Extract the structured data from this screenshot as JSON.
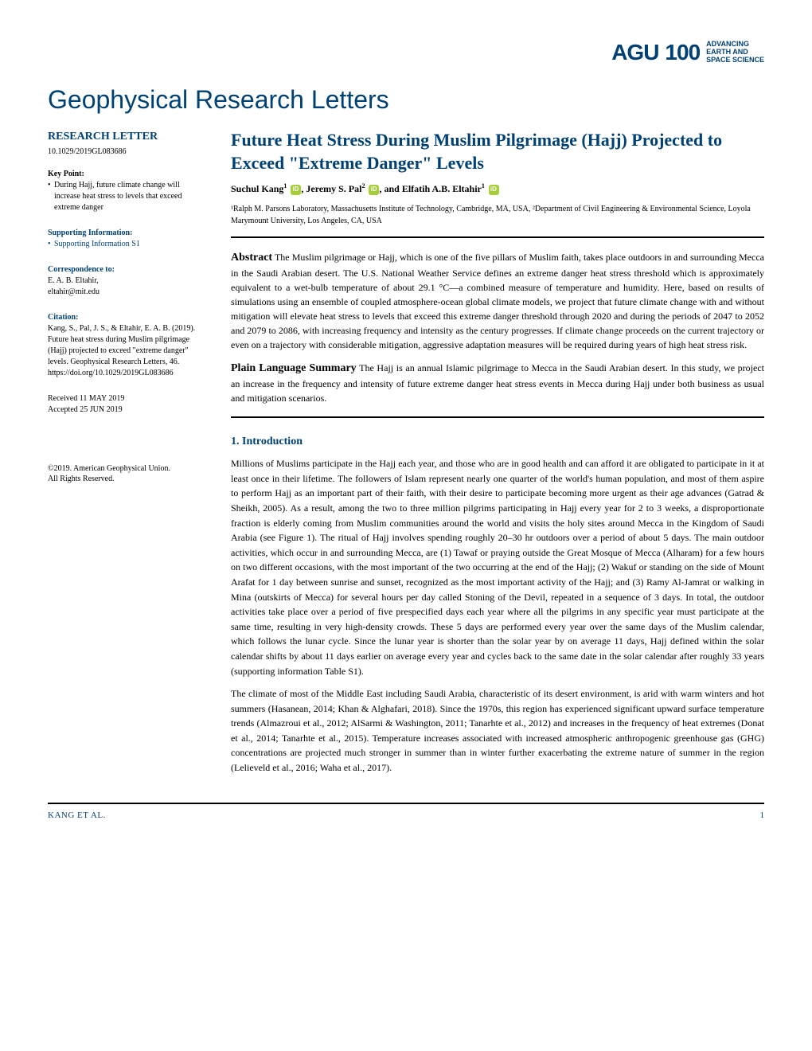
{
  "colors": {
    "primary_blue": "#004174",
    "text_black": "#000000",
    "orcid_green": "#a6ce39",
    "brand_red": "#c4302b"
  },
  "header": {
    "agu_text": "AGU",
    "agu_100": "100",
    "tagline_1": "ADVANCING",
    "tagline_2": "EARTH AND",
    "tagline_3": "SPACE SCIENCE"
  },
  "journal_title": "Geophysical Research Letters",
  "sidebar": {
    "type_label": "RESEARCH LETTER",
    "doi": "10.1029/2019GL083686",
    "key_point_label": "Key Point:",
    "key_point": "During Hajj, future climate change will increase heat stress to levels that exceed extreme danger",
    "supporting_label": "Supporting Information:",
    "supporting_item": "Supporting Information S1",
    "correspondence_label": "Correspondence to:",
    "correspondence_name": "E. A. B. Eltahir,",
    "correspondence_email": "eltahir@mit.edu",
    "citation_label": "Citation:",
    "citation_text": "Kang, S., Pal, J. S., & Eltahir, E. A. B. (2019). Future heat stress during Muslim pilgrimage (Hajj) projected to exceed \"extreme danger\" levels. Geophysical Research Letters, 46. https://doi.org/10.1029/2019GL083686",
    "received": "Received 11 MAY 2019",
    "accepted": "Accepted 25 JUN 2019",
    "copyright_line1": "©2019. American Geophysical Union.",
    "copyright_line2": "All Rights Reserved."
  },
  "article": {
    "title": "Future Heat Stress During Muslim Pilgrimage (Hajj) Projected to Exceed \"Extreme Danger\" Levels",
    "author1": "Suchul Kang",
    "author1_sup": "1",
    "author2": "Jeremy S. Pal",
    "author2_sup": "2",
    "author3": "Elfatih A.B. Eltahir",
    "author3_sup": "1",
    "affiliations": "¹Ralph M. Parsons Laboratory, Massachusetts Institute of Technology, Cambridge, MA, USA, ²Department of Civil Engineering & Environmental Science, Loyola Marymount University, Los Angeles, CA, USA",
    "abstract_label": "Abstract",
    "abstract": "The Muslim pilgrimage or Hajj, which is one of the five pillars of Muslim faith, takes place outdoors in and surrounding Mecca in the Saudi Arabian desert. The U.S. National Weather Service defines an extreme danger heat stress threshold which is approximately equivalent to a wet-bulb temperature of about 29.1 °C—a combined measure of temperature and humidity. Here, based on results of simulations using an ensemble of coupled atmosphere-ocean global climate models, we project that future climate change with and without mitigation will elevate heat stress to levels that exceed this extreme danger threshold through 2020 and during the periods of 2047 to 2052 and 2079 to 2086, with increasing frequency and intensity as the century progresses. If climate change proceeds on the current trajectory or even on a trajectory with considerable mitigation, aggressive adaptation measures will be required during years of high heat stress risk.",
    "plain_label": "Plain Language Summary",
    "plain_summary": "The Hajj is an annual Islamic pilgrimage to Mecca in the Saudi Arabian desert. In this study, we project an increase in the frequency and intensity of future extreme danger heat stress events in Mecca during Hajj under both business as usual and mitigation scenarios.",
    "section1_heading": "1. Introduction",
    "para1": "Millions of Muslims participate in the Hajj each year, and those who are in good health and can afford it are obligated to participate in it at least once in their lifetime. The followers of Islam represent nearly one quarter of the world's human population, and most of them aspire to perform Hajj as an important part of their faith, with their desire to participate becoming more urgent as their age advances (Gatrad & Sheikh, 2005). As a result, among the two to three million pilgrims participating in Hajj every year for 2 to 3 weeks, a disproportionate fraction is elderly coming from Muslim communities around the world and visits the holy sites around Mecca in the Kingdom of Saudi Arabia (see Figure 1). The ritual of Hajj involves spending roughly 20–30 hr outdoors over a period of about 5 days. The main outdoor activities, which occur in and surrounding Mecca, are (1) Tawaf or praying outside the Great Mosque of Mecca (Alharam) for a few hours on two different occasions, with the most important of the two occurring at the end of the Hajj; (2) Wakuf or standing on the side of Mount Arafat for 1 day between sunrise and sunset, recognized as the most important activity of the Hajj; and (3) Ramy Al-Jamrat or walking in Mina (outskirts of Mecca) for several hours per day called Stoning of the Devil, repeated in a sequence of 3 days. In total, the outdoor activities take place over a period of five prespecified days each year where all the pilgrims in any specific year must participate at the same time, resulting in very high-density crowds. These 5 days are performed every year over the same days of the Muslim calendar, which follows the lunar cycle. Since the lunar year is shorter than the solar year by on average 11 days, Hajj defined within the solar calendar shifts by about 11 days earlier on average every year and cycles back to the same date in the solar calendar after roughly 33 years (supporting information Table S1).",
    "para2": "The climate of most of the Middle East including Saudi Arabia, characteristic of its desert environment, is arid with warm winters and hot summers (Hasanean, 2014; Khan & Alghafari, 2018). Since the 1970s, this region has experienced significant upward surface temperature trends (Almazroui et al., 2012; AlSarmi & Washington, 2011; Tanarhte et al., 2012) and increases in the frequency of heat extremes (Donat et al., 2014; Tanarhte et al., 2015). Temperature increases associated with increased atmospheric anthropogenic greenhouse gas (GHG) concentrations are projected much stronger in summer than in winter further exacerbating the extreme nature of summer in the region (Lelieveld et al., 2016; Waha et al., 2017)."
  },
  "footer": {
    "authors": "KANG ET AL.",
    "page": "1"
  }
}
